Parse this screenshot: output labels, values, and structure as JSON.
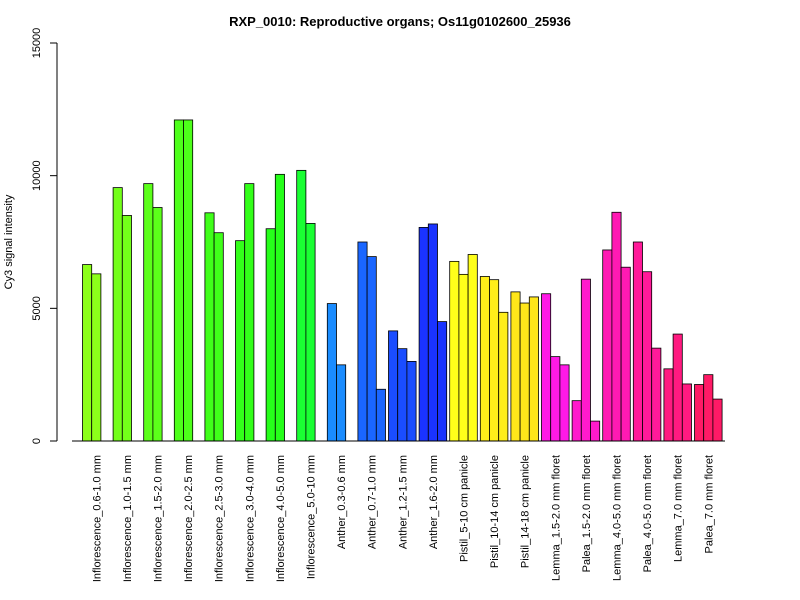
{
  "chart_data": {
    "type": "bar",
    "title": "RXP_0010: Reproductive organs; Os11g0102600_25936",
    "xlabel": "",
    "ylabel": "Cy3 signal intensity",
    "ylim": [
      0,
      15000
    ],
    "yticks": [
      "0",
      "5000",
      "10000",
      "15000"
    ],
    "grid": false,
    "legend": "none",
    "groups": [
      {
        "label": "Inflorescence_0.6-1.0 mm",
        "color": "#8cff1a",
        "values": [
          6650,
          6300
        ]
      },
      {
        "label": "Inflorescence_1.0-1.5 mm",
        "color": "#73ff1a",
        "values": [
          9550,
          8500
        ]
      },
      {
        "label": "Inflorescence_1.5-2.0 mm",
        "color": "#5cff1a",
        "values": [
          9700,
          8800
        ]
      },
      {
        "label": "Inflorescence_2.0-2.5 mm",
        "color": "#4dff1a",
        "values": [
          12100,
          12100
        ]
      },
      {
        "label": "Inflorescence_2.5-3.0 mm",
        "color": "#40ff1a",
        "values": [
          8600,
          7850
        ]
      },
      {
        "label": "Inflorescence_3.0-4.0 mm",
        "color": "#33ff1a",
        "values": [
          7550,
          9700
        ]
      },
      {
        "label": "Inflorescence_4.0-5.0 mm",
        "color": "#26ff1a",
        "values": [
          8000,
          10050
        ]
      },
      {
        "label": "Inflorescence_5.0-10 mm",
        "color": "#1aff33",
        "values": [
          10200,
          8200
        ]
      },
      {
        "label": "Anther_0.3-0.6 mm",
        "color": "#1a8cff",
        "values": [
          5180,
          2870
        ]
      },
      {
        "label": "Anther_0.7-1.0 mm",
        "color": "#1a66ff",
        "values": [
          7500,
          6950,
          1950
        ]
      },
      {
        "label": "Anther_1.2-1.5 mm",
        "color": "#1a4dff",
        "values": [
          4150,
          3480,
          3000
        ]
      },
      {
        "label": "Anther_1.6-2.0 mm",
        "color": "#1a33ff",
        "values": [
          8050,
          8180,
          4500
        ]
      },
      {
        "label": "Pistil_5-10 cm panicle",
        "color": "#ffff1a",
        "values": [
          6770,
          6280,
          7030
        ]
      },
      {
        "label": "Pistil_10-14 cm panicle",
        "color": "#ffee1a",
        "values": [
          6200,
          6080,
          4850
        ]
      },
      {
        "label": "Pistil_14-18 cm panicle",
        "color": "#ffe61a",
        "values": [
          5620,
          5200,
          5430
        ]
      },
      {
        "label": "Lemma_1.5-2.0 mm floret",
        "color": "#ff1ae6",
        "values": [
          5550,
          3180,
          2870
        ]
      },
      {
        "label": "Palea_1.5-2.0 mm floret",
        "color": "#ff1acc",
        "values": [
          1520,
          6100,
          750
        ]
      },
      {
        "label": "Lemma_4.0-5.0 mm floret",
        "color": "#ff1ab3",
        "values": [
          7200,
          8620,
          6550
        ]
      },
      {
        "label": "Palea_4.0-5.0 mm floret",
        "color": "#ff1a99",
        "values": [
          7500,
          6380,
          3500
        ]
      },
      {
        "label": "Lemma_7.0 mm floret",
        "color": "#ff1a80",
        "values": [
          2720,
          4030,
          2150
        ]
      },
      {
        "label": "Palea_7.0 mm floret",
        "color": "#ff1a66",
        "values": [
          2130,
          2500,
          1580
        ]
      }
    ]
  }
}
